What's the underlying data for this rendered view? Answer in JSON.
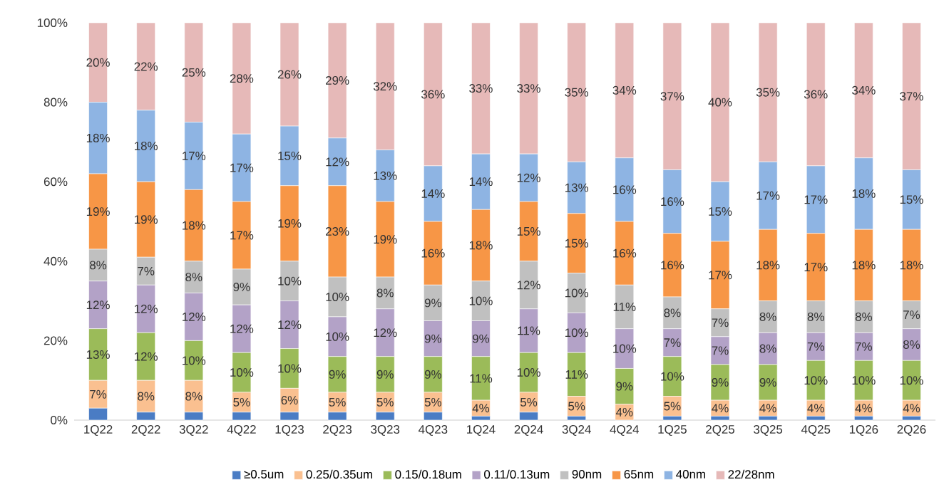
{
  "chart_data": {
    "type": "bar",
    "stacked": true,
    "legend": "bottom",
    "categories": [
      "1Q22",
      "2Q22",
      "3Q22",
      "4Q22",
      "1Q23",
      "2Q23",
      "3Q23",
      "4Q23",
      "1Q24",
      "2Q24",
      "3Q24",
      "4Q24",
      "1Q25",
      "2Q25",
      "3Q25",
      "4Q25",
      "1Q26",
      "2Q26"
    ],
    "ylim": [
      0,
      100
    ],
    "yticks": [
      {
        "value": 0,
        "label": "0%"
      },
      {
        "value": 20,
        "label": "20%"
      },
      {
        "value": 40,
        "label": "40%"
      },
      {
        "value": 60,
        "label": "60%"
      },
      {
        "value": 80,
        "label": "80%"
      },
      {
        "value": 100,
        "label": "100%"
      }
    ],
    "series": [
      {
        "name": "≥0.5um",
        "color": "#4a7cc4",
        "values": [
          3,
          2,
          2,
          2,
          2,
          2,
          2,
          2,
          1,
          2,
          1,
          0,
          1,
          1,
          1,
          1,
          1,
          1
        ]
      },
      {
        "name": "0.25/0.35um",
        "color": "#fac090",
        "values": [
          7,
          8,
          8,
          5,
          6,
          5,
          5,
          5,
          4,
          5,
          5,
          4,
          5,
          4,
          4,
          4,
          4,
          4
        ],
        "value_labels": [
          "7%",
          "8%",
          "8%",
          "5%",
          "6%",
          "5%",
          "5%",
          "5%",
          "4%",
          "5%",
          "5%",
          "4%",
          "5%",
          "4%",
          "4%",
          "4%",
          "4%",
          "4%"
        ]
      },
      {
        "name": "0.15/0.18um",
        "color": "#9bbb59",
        "values": [
          13,
          12,
          10,
          10,
          10,
          9,
          9,
          9,
          11,
          10,
          11,
          9,
          10,
          9,
          9,
          10,
          10,
          10
        ],
        "value_labels": [
          "13%",
          "12%",
          "10%",
          "10%",
          "10%",
          "9%",
          "9%",
          "9%",
          "11%",
          "10%",
          "11%",
          "9%",
          "10%",
          "9%",
          "9%",
          "10%",
          "10%",
          "10%"
        ]
      },
      {
        "name": "0.11/0.13um",
        "color": "#b3a2c7",
        "values": [
          12,
          12,
          12,
          12,
          12,
          10,
          12,
          9,
          9,
          11,
          10,
          10,
          7,
          7,
          8,
          7,
          7,
          8
        ],
        "value_labels": [
          "12%",
          "12%",
          "12%",
          "12%",
          "12%",
          "10%",
          "12%",
          "9%",
          "9%",
          "11%",
          "10%",
          "10%",
          "7%",
          "7%",
          "8%",
          "7%",
          "7%",
          "8%"
        ]
      },
      {
        "name": "90nm",
        "color": "#c0c0c0",
        "values": [
          8,
          7,
          8,
          9,
          10,
          10,
          8,
          9,
          10,
          12,
          10,
          11,
          8,
          7,
          8,
          8,
          8,
          7
        ],
        "value_labels": [
          "8%",
          "7%",
          "8%",
          "9%",
          "10%",
          "10%",
          "8%",
          "9%",
          "10%",
          "12%",
          "10%",
          "11%",
          "8%",
          "7%",
          "8%",
          "8%",
          "8%",
          "7%"
        ]
      },
      {
        "name": "65nm",
        "color": "#f79646",
        "values": [
          19,
          19,
          18,
          17,
          19,
          23,
          19,
          16,
          18,
          15,
          15,
          16,
          16,
          17,
          18,
          17,
          18,
          18
        ],
        "value_labels": [
          "19%",
          "19%",
          "18%",
          "17%",
          "19%",
          "23%",
          "19%",
          "16%",
          "18%",
          "15%",
          "15%",
          "16%",
          "16%",
          "17%",
          "18%",
          "17%",
          "18%",
          "18%"
        ]
      },
      {
        "name": "40nm",
        "color": "#8eb4e3",
        "values": [
          18,
          18,
          17,
          17,
          15,
          12,
          13,
          14,
          14,
          12,
          13,
          16,
          16,
          15,
          17,
          17,
          18,
          15
        ],
        "value_labels": [
          "18%",
          "18%",
          "17%",
          "17%",
          "15%",
          "12%",
          "13%",
          "14%",
          "14%",
          "12%",
          "13%",
          "16%",
          "16%",
          "15%",
          "17%",
          "17%",
          "18%",
          "15%"
        ]
      },
      {
        "name": "22/28nm",
        "color": "#e6b9b8",
        "values": [
          20,
          22,
          25,
          28,
          26,
          29,
          32,
          36,
          33,
          33,
          35,
          34,
          37,
          40,
          35,
          36,
          34,
          37
        ],
        "value_labels": [
          "20%",
          "22%",
          "25%",
          "28%",
          "26%",
          "29%",
          "32%",
          "36%",
          "33%",
          "33%",
          "35%",
          "34%",
          "37%",
          "40%",
          "35%",
          "36%",
          "34%",
          "37%"
        ]
      }
    ]
  }
}
